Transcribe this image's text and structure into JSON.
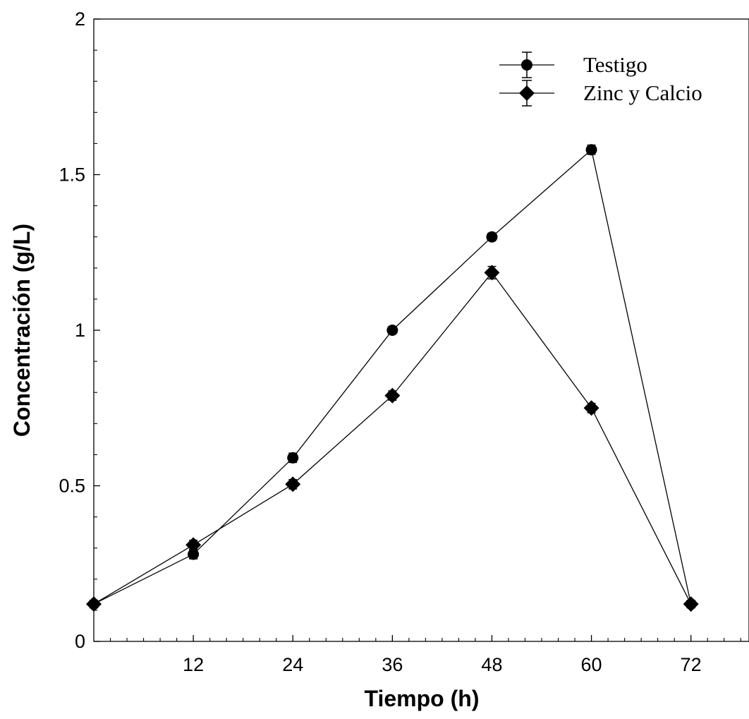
{
  "chart_data": {
    "type": "line",
    "xlabel": "Tiempo (h)",
    "ylabel": "Concentración (g/L)",
    "xlim": [
      0,
      79
    ],
    "ylim": [
      0,
      2
    ],
    "x_ticks": [
      12,
      24,
      36,
      48,
      60,
      72
    ],
    "y_ticks": [
      0,
      0.5,
      1,
      1.5,
      2
    ],
    "y_tick_labels": [
      "0",
      "0.5",
      "1",
      "1.5",
      "2"
    ],
    "grid": false,
    "legend_position": "top-right",
    "series": [
      {
        "name": "Testigo",
        "marker": "circle",
        "color": "#000000",
        "x": [
          0,
          12,
          24,
          36,
          48,
          60,
          72
        ],
        "y": [
          0.12,
          0.28,
          0.59,
          1.0,
          1.3,
          1.58,
          0.12
        ],
        "err": [
          0.012,
          0.015,
          0.015,
          0.012,
          0.012,
          0.015,
          0.012
        ]
      },
      {
        "name": "Zinc y Calcio",
        "marker": "diamond",
        "color": "#000000",
        "x": [
          0,
          12,
          24,
          36,
          48,
          60,
          72
        ],
        "y": [
          0.12,
          0.31,
          0.505,
          0.79,
          1.185,
          0.75,
          0.12
        ],
        "err": [
          0.012,
          0.015,
          0.015,
          0.015,
          0.02,
          0.015,
          0.012
        ]
      }
    ]
  }
}
